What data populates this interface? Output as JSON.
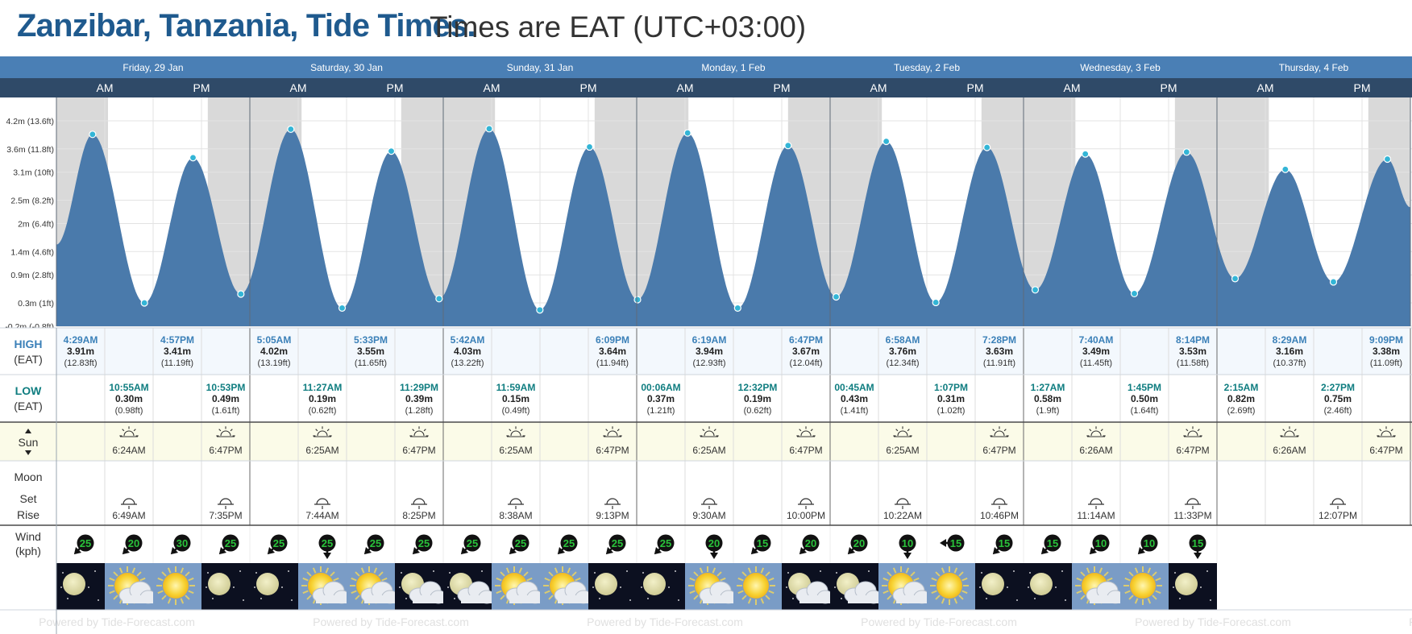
{
  "title": {
    "main": "Zanzibar, Tanzania, Tide Times.",
    "sub": "Times are EAT (UTC+03:00)"
  },
  "days": [
    "Friday, 29 Jan",
    "Saturday, 30 Jan",
    "Sunday, 31 Jan",
    "Monday, 1 Feb",
    "Tuesday, 2 Feb",
    "Wednesday, 3 Feb",
    "Thursday, 4 Feb"
  ],
  "half_labels": [
    "AM",
    "PM"
  ],
  "row_labels": {
    "high": [
      "HIGH",
      "(EAT)"
    ],
    "low": [
      "LOW",
      "(EAT)"
    ],
    "sun": "Sun",
    "moon": "Moon",
    "set": "Set",
    "rise": "Rise",
    "wind": [
      "Wind",
      "(kph)"
    ]
  },
  "chart_data": {
    "type": "area",
    "ylabel": "",
    "yticks": [
      "4.2m (13.6ft)",
      "3.6m (11.8ft)",
      "3.1m (10ft)",
      "2.5m (8.2ft)",
      "2m (6.4ft)",
      "1.4m (4.6ft)",
      "0.9m (2.8ft)",
      "0.3m (1ft)",
      "-0.2m (-0.8ft)"
    ],
    "ytick_values": [
      4.2,
      3.6,
      3.1,
      2.5,
      2.0,
      1.4,
      0.9,
      0.3,
      -0.2
    ],
    "ylim": [
      -0.2,
      4.7
    ],
    "xlim_hours": [
      0,
      168
    ],
    "grid": true,
    "series": [
      {
        "points": [
          {
            "time": "Fri 12:00AM",
            "h": 1.55
          },
          {
            "time": "Fri 4:29AM",
            "h": 3.91,
            "label_time": "4:29AM",
            "label_m": "3.91m",
            "label_ft": "(12.83ft)",
            "type": "high"
          },
          {
            "time": "Fri 10:55AM",
            "h": 0.3,
            "label_time": "10:55AM",
            "label_m": "0.30m",
            "label_ft": "(0.98ft)",
            "type": "low"
          },
          {
            "time": "Fri 4:57PM",
            "h": 3.41,
            "label_time": "4:57PM",
            "label_m": "3.41m",
            "label_ft": "(11.19ft)",
            "type": "high"
          },
          {
            "time": "Fri 10:53PM",
            "h": 0.49,
            "label_time": "10:53PM",
            "label_m": "0.49m",
            "label_ft": "(1.61ft)",
            "type": "low"
          },
          {
            "time": "Sat 5:05AM",
            "h": 4.02,
            "label_time": "5:05AM",
            "label_m": "4.02m",
            "label_ft": "(13.19ft)",
            "type": "high"
          },
          {
            "time": "Sat 11:27AM",
            "h": 0.19,
            "label_time": "11:27AM",
            "label_m": "0.19m",
            "label_ft": "(0.62ft)",
            "type": "low"
          },
          {
            "time": "Sat 5:33PM",
            "h": 3.55,
            "label_time": "5:33PM",
            "label_m": "3.55m",
            "label_ft": "(11.65ft)",
            "type": "high"
          },
          {
            "time": "Sat 11:29PM",
            "h": 0.39,
            "label_time": "11:29PM",
            "label_m": "0.39m",
            "label_ft": "(1.28ft)",
            "type": "low"
          },
          {
            "time": "Sun 5:42AM",
            "h": 4.03,
            "label_time": "5:42AM",
            "label_m": "4.03m",
            "label_ft": "(13.22ft)",
            "type": "high"
          },
          {
            "time": "Sun 11:59AM",
            "h": 0.15,
            "label_time": "11:59AM",
            "label_m": "0.15m",
            "label_ft": "(0.49ft)",
            "type": "low"
          },
          {
            "time": "Sun 6:09PM",
            "h": 3.64,
            "label_time": "6:09PM",
            "label_m": "3.64m",
            "label_ft": "(11.94ft)",
            "type": "high"
          },
          {
            "time": "Mon 00:06AM",
            "h": 0.37,
            "label_time": "00:06AM",
            "label_m": "0.37m",
            "label_ft": "(1.21ft)",
            "type": "low"
          },
          {
            "time": "Mon 6:19AM",
            "h": 3.94,
            "label_time": "6:19AM",
            "label_m": "3.94m",
            "label_ft": "(12.93ft)",
            "type": "high"
          },
          {
            "time": "Mon 12:32PM",
            "h": 0.19,
            "label_time": "12:32PM",
            "label_m": "0.19m",
            "label_ft": "(0.62ft)",
            "type": "low"
          },
          {
            "time": "Mon 6:47PM",
            "h": 3.67,
            "label_time": "6:47PM",
            "label_m": "3.67m",
            "label_ft": "(12.04ft)",
            "type": "high"
          },
          {
            "time": "Tue 00:45AM",
            "h": 0.43,
            "label_time": "00:45AM",
            "label_m": "0.43m",
            "label_ft": "(1.41ft)",
            "type": "low"
          },
          {
            "time": "Tue 6:58AM",
            "h": 3.76,
            "label_time": "6:58AM",
            "label_m": "3.76m",
            "label_ft": "(12.34ft)",
            "type": "high"
          },
          {
            "time": "Tue 1:07PM",
            "h": 0.31,
            "label_time": "1:07PM",
            "label_m": "0.31m",
            "label_ft": "(1.02ft)",
            "type": "low"
          },
          {
            "time": "Tue 7:28PM",
            "h": 3.63,
            "label_time": "7:28PM",
            "label_m": "3.63m",
            "label_ft": "(11.91ft)",
            "type": "high"
          },
          {
            "time": "Wed 1:27AM",
            "h": 0.58,
            "label_time": "1:27AM",
            "label_m": "0.58m",
            "label_ft": "(1.9ft)",
            "type": "low"
          },
          {
            "time": "Wed 7:40AM",
            "h": 3.49,
            "label_time": "7:40AM",
            "label_m": "3.49m",
            "label_ft": "(11.45ft)",
            "type": "high"
          },
          {
            "time": "Wed 1:45PM",
            "h": 0.5,
            "label_time": "1:45PM",
            "label_m": "0.50m",
            "label_ft": "(1.64ft)",
            "type": "low"
          },
          {
            "time": "Wed 8:14PM",
            "h": 3.53,
            "label_time": "8:14PM",
            "label_m": "3.53m",
            "label_ft": "(11.58ft)",
            "type": "high"
          },
          {
            "time": "Thu 2:15AM",
            "h": 0.82,
            "label_time": "2:15AM",
            "label_m": "0.82m",
            "label_ft": "(2.69ft)",
            "type": "low"
          },
          {
            "time": "Thu 8:29AM",
            "h": 3.16,
            "label_time": "8:29AM",
            "label_m": "3.16m",
            "label_ft": "(10.37ft)",
            "type": "high"
          },
          {
            "time": "Thu 2:27PM",
            "h": 0.75,
            "label_time": "2:27PM",
            "label_m": "0.75m",
            "label_ft": "(2.46ft)",
            "type": "low"
          },
          {
            "time": "Thu 9:09PM",
            "h": 3.38,
            "label_time": "9:09PM",
            "label_m": "3.38m",
            "label_ft": "(11.09ft)",
            "type": "high"
          },
          {
            "time": "Thu 11:59PM",
            "h": 2.35
          }
        ]
      }
    ]
  },
  "sun": [
    {
      "sunrise": "6:24AM",
      "sunset": "6:47PM"
    },
    {
      "sunrise": "6:25AM",
      "sunset": "6:47PM"
    },
    {
      "sunrise": "6:25AM",
      "sunset": "6:47PM"
    },
    {
      "sunrise": "6:25AM",
      "sunset": "6:47PM"
    },
    {
      "sunrise": "6:25AM",
      "sunset": "6:47PM"
    },
    {
      "sunrise": "6:26AM",
      "sunset": "6:47PM"
    },
    {
      "sunrise": "6:26AM",
      "sunset": "6:47PM"
    }
  ],
  "moon_times": [
    {
      "slot": 1,
      "time": "6:49AM",
      "kind": "set"
    },
    {
      "slot": 3,
      "time": "7:35PM",
      "kind": "rise"
    },
    {
      "slot": 5,
      "time": "7:44AM",
      "kind": "set"
    },
    {
      "slot": 7,
      "time": "8:25PM",
      "kind": "rise"
    },
    {
      "slot": 9,
      "time": "8:38AM",
      "kind": "set"
    },
    {
      "slot": 11,
      "time": "9:13PM",
      "kind": "rise"
    },
    {
      "slot": 13,
      "time": "9:30AM",
      "kind": "set"
    },
    {
      "slot": 15,
      "time": "10:00PM",
      "kind": "rise"
    },
    {
      "slot": 17,
      "time": "10:22AM",
      "kind": "set"
    },
    {
      "slot": 19,
      "time": "10:46PM",
      "kind": "rise"
    },
    {
      "slot": 21,
      "time": "11:14AM",
      "kind": "set"
    },
    {
      "slot": 23,
      "time": "11:33PM",
      "kind": "rise"
    },
    {
      "slot": 26,
      "time": "12:07PM",
      "kind": "set"
    }
  ],
  "wind": [
    {
      "speed": "25",
      "dir": "sw"
    },
    {
      "speed": "20",
      "dir": "sw"
    },
    {
      "speed": "30",
      "dir": "sw"
    },
    {
      "speed": "25",
      "dir": "sw"
    },
    {
      "speed": "25",
      "dir": "sw"
    },
    {
      "speed": "25",
      "dir": "s"
    },
    {
      "speed": "25",
      "dir": "sw"
    },
    {
      "speed": "25",
      "dir": "sw"
    },
    {
      "speed": "25",
      "dir": "sw"
    },
    {
      "speed": "25",
      "dir": "sw"
    },
    {
      "speed": "25",
      "dir": "sw"
    },
    {
      "speed": "25",
      "dir": "sw"
    },
    {
      "speed": "25",
      "dir": "sw"
    },
    {
      "speed": "20",
      "dir": "s"
    },
    {
      "speed": "15",
      "dir": "sw"
    },
    {
      "speed": "20",
      "dir": "sw"
    },
    {
      "speed": "20",
      "dir": "sw"
    },
    {
      "speed": "10",
      "dir": "s"
    },
    {
      "speed": "15",
      "dir": "w"
    },
    {
      "speed": "15",
      "dir": "sw"
    },
    {
      "speed": "15",
      "dir": "sw"
    },
    {
      "speed": "10",
      "dir": "sw"
    },
    {
      "speed": "10",
      "dir": "sw"
    },
    {
      "speed": "15",
      "dir": "s"
    }
  ],
  "weather": [
    "moon-icon",
    "partly-cloudy-sun-icon",
    "sun-icon",
    "moon-icon",
    "moon-icon",
    "partly-cloudy-sun-icon",
    "partly-cloudy-sun-icon",
    "partly-cloudy-moon-icon",
    "partly-cloudy-moon-icon",
    "partly-cloudy-sun-icon",
    "partly-cloudy-sun-icon",
    "moon-icon",
    "moon-icon",
    "partly-cloudy-sun-icon",
    "sun-icon",
    "partly-cloudy-moon-icon",
    "partly-cloudy-moon-icon",
    "partly-cloudy-sun-icon",
    "sun-icon",
    "moon-icon",
    "moon-icon",
    "partly-cloudy-sun-icon",
    "sun-icon",
    "moon-icon"
  ],
  "footer_text": "Powered by Tide-Forecast.com",
  "colors": {
    "header_day": "#4a7fb5",
    "header_ampm": "#2f4a68",
    "tide_fill": "#4a7aab",
    "night_shade": "#d9d9d9",
    "high_text": "#3b80b8",
    "low_text": "#0f7d80",
    "sun_row": "#fbfbe8",
    "title": "#1f5a8e"
  }
}
